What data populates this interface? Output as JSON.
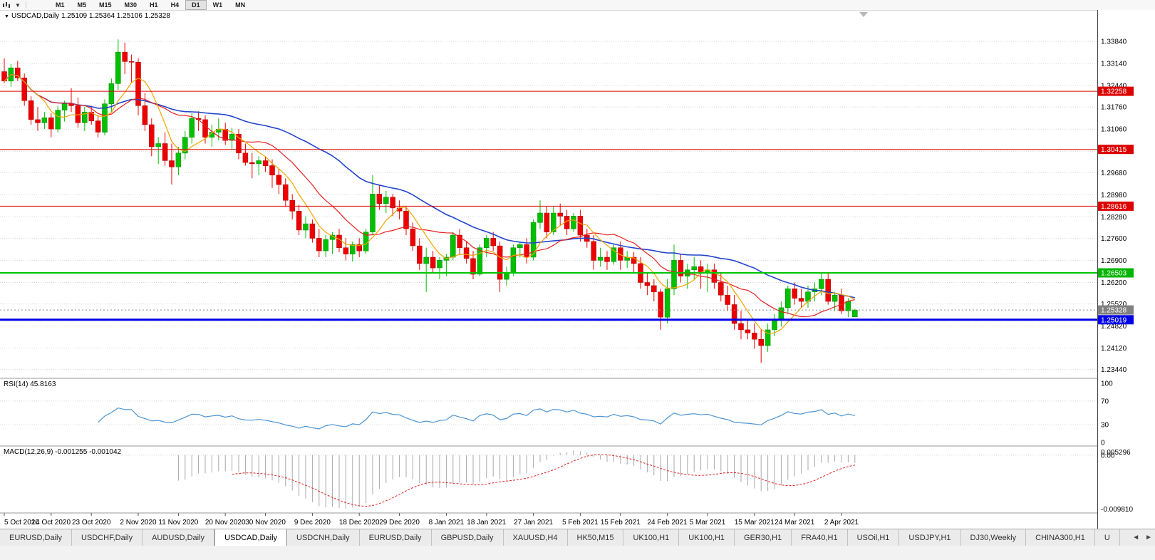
{
  "toolbar": {
    "timeframe_buttons": [
      "M1",
      "M5",
      "M15",
      "M30",
      "H1",
      "H4",
      "D1",
      "W1",
      "MN"
    ],
    "active_timeframe": "D1"
  },
  "chart_data": {
    "type": "candlestick",
    "symbol_label": "USDCAD,Daily",
    "quote_line": "1.25109 1.25364 1.25106 1.25328",
    "ohlc_display": {
      "open": "1.25109",
      "high": "1.25364",
      "low": "1.25106",
      "close": "1.25328"
    },
    "y_axis_labels": [
      1.3384,
      1.3314,
      1.3244,
      1.3176,
      1.3106,
      1.3036,
      1.2968,
      1.2898,
      1.2828,
      1.276,
      1.269,
      1.262,
      1.2552,
      1.2482,
      1.2412,
      1.2344
    ],
    "x_labels": [
      "5 Oct 2020",
      "14 Oct 2020",
      "23 Oct 2020",
      "2 Nov 2020",
      "11 Nov 2020",
      "20 Nov 2020",
      "30 Nov 2020",
      "9 Dec 2020",
      "18 Dec 2020",
      "29 Dec 2020",
      "8 Jan 2021",
      "18 Jan 2021",
      "27 Jan 2021",
      "5 Feb 2021",
      "15 Feb 2021",
      "24 Feb 2021",
      "5 Mar 2021",
      "15 Mar 2021",
      "24 Mar 2021",
      "2 Apr 2021"
    ],
    "hlines": [
      {
        "price": 1.32258,
        "color": "#dd0000",
        "width": 1,
        "badge": "#dd0000"
      },
      {
        "price": 1.30415,
        "color": "#dd0000",
        "width": 1,
        "badge": "#dd0000"
      },
      {
        "price": 1.28616,
        "color": "#dd0000",
        "width": 1,
        "badge": "#dd0000"
      },
      {
        "price": 1.26503,
        "color": "#00c400",
        "width": 2,
        "badge": "#00b400"
      },
      {
        "price": 1.25019,
        "color": "#0000e8",
        "width": 3,
        "badge": "#0000e8"
      }
    ],
    "current_price": {
      "price": 1.25328,
      "badge": "#808080"
    },
    "moving_averages": [
      {
        "period": 34,
        "color": "#2244cc",
        "width": 1.6
      },
      {
        "period": 13,
        "color": "#e82020",
        "width": 1.2
      },
      {
        "period": 6,
        "color": "#f0a500",
        "width": 1.2
      }
    ],
    "rsi": {
      "label": "RSI(14) 45.8163",
      "period": 14,
      "last": 45.8163,
      "levels": [
        100,
        70,
        30,
        0
      ],
      "grid_levels": [
        70,
        30
      ],
      "color": "#4d94d0"
    },
    "macd": {
      "label": "MACD(12,26,9) -0.001255 -0.001042",
      "fast": 12,
      "slow": 26,
      "signal": 9,
      "last_macd": -0.001255,
      "last_signal": -0.001042,
      "axis_labels": [
        "0.005296",
        "0.00",
        "-0.009810"
      ],
      "histogram_color": "#a8a8a8",
      "signal_color": "#dd2222"
    },
    "candles": [
      [
        1.3288,
        1.333,
        1.3252,
        1.3258
      ],
      [
        1.3258,
        1.3312,
        1.324,
        1.33
      ],
      [
        1.33,
        1.3322,
        1.3258,
        1.3268
      ],
      [
        1.3268,
        1.3282,
        1.318,
        1.3196
      ],
      [
        1.3196,
        1.321,
        1.312,
        1.3136
      ],
      [
        1.3136,
        1.3176,
        1.31,
        1.3126
      ],
      [
        1.3126,
        1.316,
        1.3106,
        1.3142
      ],
      [
        1.3142,
        1.3156,
        1.308,
        1.3106
      ],
      [
        1.3106,
        1.318,
        1.3096,
        1.3166
      ],
      [
        1.3166,
        1.3196,
        1.313,
        1.3186
      ],
      [
        1.3186,
        1.3236,
        1.316,
        1.318
      ],
      [
        1.318,
        1.3206,
        1.311,
        1.3126
      ],
      [
        1.3126,
        1.3176,
        1.31,
        1.316
      ],
      [
        1.316,
        1.318,
        1.312,
        1.3132
      ],
      [
        1.3132,
        1.315,
        1.308,
        1.3096
      ],
      [
        1.3096,
        1.32,
        1.3086,
        1.3186
      ],
      [
        1.3186,
        1.3266,
        1.316,
        1.325
      ],
      [
        1.325,
        1.339,
        1.323,
        1.335
      ],
      [
        1.335,
        1.338,
        1.328,
        1.332
      ],
      [
        1.332,
        1.3342,
        1.3252,
        1.3318
      ],
      [
        1.3318,
        1.333,
        1.315,
        1.318
      ],
      [
        1.318,
        1.322,
        1.31,
        1.312
      ],
      [
        1.312,
        1.314,
        1.302,
        1.305
      ],
      [
        1.305,
        1.308,
        1.2996,
        1.306
      ],
      [
        1.306,
        1.3096,
        1.299,
        1.3006
      ],
      [
        1.3006,
        1.306,
        1.293,
        1.2986
      ],
      [
        1.2986,
        1.305,
        1.296,
        1.303
      ],
      [
        1.303,
        1.31,
        1.301,
        1.308
      ],
      [
        1.308,
        1.3156,
        1.306,
        1.314
      ],
      [
        1.314,
        1.3162,
        1.31,
        1.3136
      ],
      [
        1.3136,
        1.315,
        1.306,
        1.308
      ],
      [
        1.308,
        1.312,
        1.305,
        1.3096
      ],
      [
        1.3096,
        1.314,
        1.307,
        1.3106
      ],
      [
        1.3106,
        1.3126,
        1.3056,
        1.307
      ],
      [
        1.307,
        1.311,
        1.304,
        1.309
      ],
      [
        1.309,
        1.3106,
        1.301,
        1.303
      ],
      [
        1.303,
        1.306,
        1.299,
        1.3
      ],
      [
        1.3,
        1.303,
        1.295,
        1.2996
      ],
      [
        1.2996,
        1.302,
        1.296,
        1.3006
      ],
      [
        1.3006,
        1.302,
        1.297,
        1.299
      ],
      [
        1.299,
        1.301,
        1.292,
        1.296
      ],
      [
        1.296,
        1.298,
        1.29,
        1.293
      ],
      [
        1.293,
        1.295,
        1.286,
        1.288
      ],
      [
        1.288,
        1.29,
        1.282,
        1.2846
      ],
      [
        1.2846,
        1.2866,
        1.277,
        1.2786
      ],
      [
        1.2786,
        1.283,
        1.276,
        1.2806
      ],
      [
        1.2806,
        1.282,
        1.2746,
        1.276
      ],
      [
        1.276,
        1.279,
        1.27,
        1.272
      ],
      [
        1.272,
        1.277,
        1.27,
        1.2756
      ],
      [
        1.2756,
        1.278,
        1.271,
        1.277
      ],
      [
        1.277,
        1.279,
        1.2716,
        1.273
      ],
      [
        1.273,
        1.276,
        1.269,
        1.271
      ],
      [
        1.271,
        1.275,
        1.2686,
        1.274
      ],
      [
        1.274,
        1.276,
        1.27,
        1.272
      ],
      [
        1.272,
        1.279,
        1.271,
        1.278
      ],
      [
        1.278,
        1.296,
        1.277,
        1.29
      ],
      [
        1.29,
        1.293,
        1.285,
        1.287
      ],
      [
        1.287,
        1.291,
        1.284,
        1.289
      ],
      [
        1.289,
        1.29,
        1.283,
        1.2856
      ],
      [
        1.2856,
        1.288,
        1.282,
        1.2846
      ],
      [
        1.2846,
        1.286,
        1.277,
        1.279
      ],
      [
        1.279,
        1.281,
        1.272,
        1.2736
      ],
      [
        1.2736,
        1.276,
        1.266,
        1.268
      ],
      [
        1.268,
        1.273,
        1.259,
        1.27
      ],
      [
        1.27,
        1.272,
        1.265,
        1.2666
      ],
      [
        1.2666,
        1.27,
        1.263,
        1.269
      ],
      [
        1.269,
        1.271,
        1.264,
        1.27
      ],
      [
        1.27,
        1.278,
        1.269,
        1.277
      ],
      [
        1.277,
        1.279,
        1.271,
        1.273
      ],
      [
        1.273,
        1.275,
        1.268,
        1.2696
      ],
      [
        1.2696,
        1.272,
        1.263,
        1.2646
      ],
      [
        1.2646,
        1.274,
        1.264,
        1.273
      ],
      [
        1.273,
        1.277,
        1.27,
        1.276
      ],
      [
        1.276,
        1.278,
        1.272,
        1.2736
      ],
      [
        1.2736,
        1.275,
        1.259,
        1.263
      ],
      [
        1.263,
        1.267,
        1.261,
        1.265
      ],
      [
        1.265,
        1.274,
        1.264,
        1.273
      ],
      [
        1.273,
        1.275,
        1.27,
        1.274
      ],
      [
        1.274,
        1.276,
        1.268,
        1.27
      ],
      [
        1.27,
        1.282,
        1.269,
        1.281
      ],
      [
        1.281,
        1.288,
        1.279,
        1.284
      ],
      [
        1.284,
        1.286,
        1.276,
        1.278
      ],
      [
        1.278,
        1.286,
        1.277,
        1.284
      ],
      [
        1.284,
        1.287,
        1.28,
        1.283
      ],
      [
        1.283,
        1.285,
        1.277,
        1.279
      ],
      [
        1.279,
        1.284,
        1.278,
        1.283
      ],
      [
        1.283,
        1.285,
        1.275,
        1.277
      ],
      [
        1.277,
        1.279,
        1.273,
        1.275
      ],
      [
        1.275,
        1.277,
        1.266,
        1.269
      ],
      [
        1.269,
        1.273,
        1.267,
        1.27
      ],
      [
        1.27,
        1.272,
        1.266,
        1.2686
      ],
      [
        1.2686,
        1.274,
        1.2676,
        1.273
      ],
      [
        1.273,
        1.275,
        1.266,
        1.269
      ],
      [
        1.269,
        1.272,
        1.2666,
        1.27
      ],
      [
        1.27,
        1.2716,
        1.265,
        1.268
      ],
      [
        1.268,
        1.27,
        1.26,
        1.262
      ],
      [
        1.262,
        1.265,
        1.258,
        1.261
      ],
      [
        1.261,
        1.263,
        1.256,
        1.259
      ],
      [
        1.259,
        1.26,
        1.247,
        1.251
      ],
      [
        1.251,
        1.263,
        1.249,
        1.26
      ],
      [
        1.26,
        1.274,
        1.258,
        1.269
      ],
      [
        1.269,
        1.271,
        1.262,
        1.264
      ],
      [
        1.264,
        1.268,
        1.26,
        1.266
      ],
      [
        1.266,
        1.27,
        1.263,
        1.267
      ],
      [
        1.267,
        1.269,
        1.26,
        1.265
      ],
      [
        1.265,
        1.268,
        1.259,
        1.266
      ],
      [
        1.266,
        1.268,
        1.26,
        1.262
      ],
      [
        1.262,
        1.265,
        1.256,
        1.258
      ],
      [
        1.258,
        1.261,
        1.253,
        1.255
      ],
      [
        1.255,
        1.258,
        1.247,
        1.249
      ],
      [
        1.249,
        1.253,
        1.244,
        1.247
      ],
      [
        1.247,
        1.25,
        1.244,
        1.246
      ],
      [
        1.246,
        1.249,
        1.241,
        1.244
      ],
      [
        1.244,
        1.247,
        1.2365,
        1.242
      ],
      [
        1.242,
        1.249,
        1.24,
        1.247
      ],
      [
        1.247,
        1.252,
        1.245,
        1.25
      ],
      [
        1.25,
        1.256,
        1.248,
        1.254
      ],
      [
        1.254,
        1.261,
        1.252,
        1.26
      ],
      [
        1.26,
        1.262,
        1.255,
        1.257
      ],
      [
        1.257,
        1.26,
        1.254,
        1.256
      ],
      [
        1.256,
        1.261,
        1.254,
        1.259
      ],
      [
        1.259,
        1.262,
        1.256,
        1.26
      ],
      [
        1.26,
        1.265,
        1.258,
        1.263
      ],
      [
        1.263,
        1.265,
        1.255,
        1.256
      ],
      [
        1.256,
        1.259,
        1.253,
        1.258
      ],
      [
        1.258,
        1.26,
        1.252,
        1.253
      ],
      [
        1.253,
        1.257,
        1.251,
        1.256
      ],
      [
        1.25109,
        1.25364,
        1.25106,
        1.25328
      ]
    ],
    "candle_colors": {
      "up_fill": "#00C000",
      "up_stroke": "#008000",
      "down_fill": "#EE0000",
      "down_stroke": "#A00000"
    }
  },
  "tabs": {
    "items": [
      {
        "label": "EURUSD,Daily",
        "active": false
      },
      {
        "label": "USDCHF,Daily",
        "active": false
      },
      {
        "label": "AUDUSD,Daily",
        "active": false
      },
      {
        "label": "USDCAD,Daily",
        "active": true
      },
      {
        "label": "USDCNH,Daily",
        "active": false
      },
      {
        "label": "EURUSD,Daily",
        "active": false
      },
      {
        "label": "GBPUSD,Daily",
        "active": false
      },
      {
        "label": "XAUUSD,H4",
        "active": false
      },
      {
        "label": "HK50,M15",
        "active": false
      },
      {
        "label": "UK100,H1",
        "active": false
      },
      {
        "label": "UK100,H1",
        "active": false
      },
      {
        "label": "GER30,H1",
        "active": false
      },
      {
        "label": "FRA40,H1",
        "active": false
      },
      {
        "label": "USOil,H1",
        "active": false
      },
      {
        "label": "USDJPY,H1",
        "active": false
      },
      {
        "label": "DJ30,Weekly",
        "active": false
      },
      {
        "label": "CHINA300,H1",
        "active": false
      },
      {
        "label": "U",
        "active": false
      }
    ],
    "scroll_left": "◄",
    "scroll_right": "►"
  }
}
